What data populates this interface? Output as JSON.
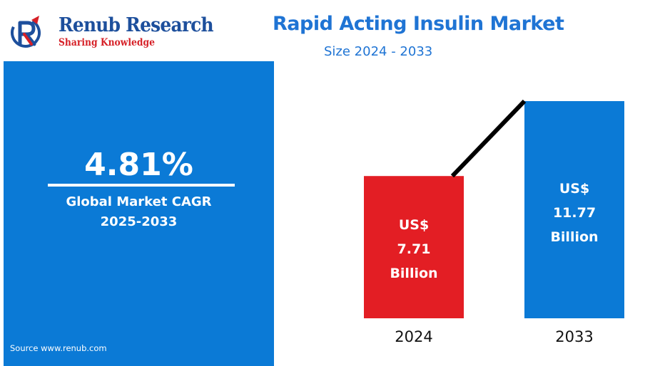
{
  "logo": {
    "name": "Renub Research",
    "tagline": "Sharing Knowledge"
  },
  "header": {
    "title": "Rapid Acting Insulin Market",
    "subtitle": "Size 2024 - 2033"
  },
  "cagr": {
    "value": "4.81%",
    "label_line1": "Global Market CAGR",
    "label_line2": "2025-2033"
  },
  "source": "Source  www.renub.com",
  "colors": {
    "primary_blue": "#0b7ad6",
    "title_blue": "#1f74d4",
    "bar_2024": "#e31e24",
    "bar_2033": "#0b7ad6",
    "trend_line": "#000000"
  },
  "chart_data": {
    "type": "bar",
    "categories": [
      "2024",
      "2033"
    ],
    "values": [
      7.71,
      11.77
    ],
    "unit": "US$ Billion",
    "data_labels": [
      [
        "US$",
        "7.71",
        "Billion"
      ],
      [
        "US$",
        "11.77",
        "Billion"
      ]
    ],
    "bar_colors": [
      "#e31e24",
      "#0b7ad6"
    ],
    "title": "Rapid Acting Insulin Market",
    "subtitle": "Size 2024 - 2033",
    "xlabel": "",
    "ylabel": "",
    "grid": false,
    "legend": "none",
    "trend_line": true
  }
}
